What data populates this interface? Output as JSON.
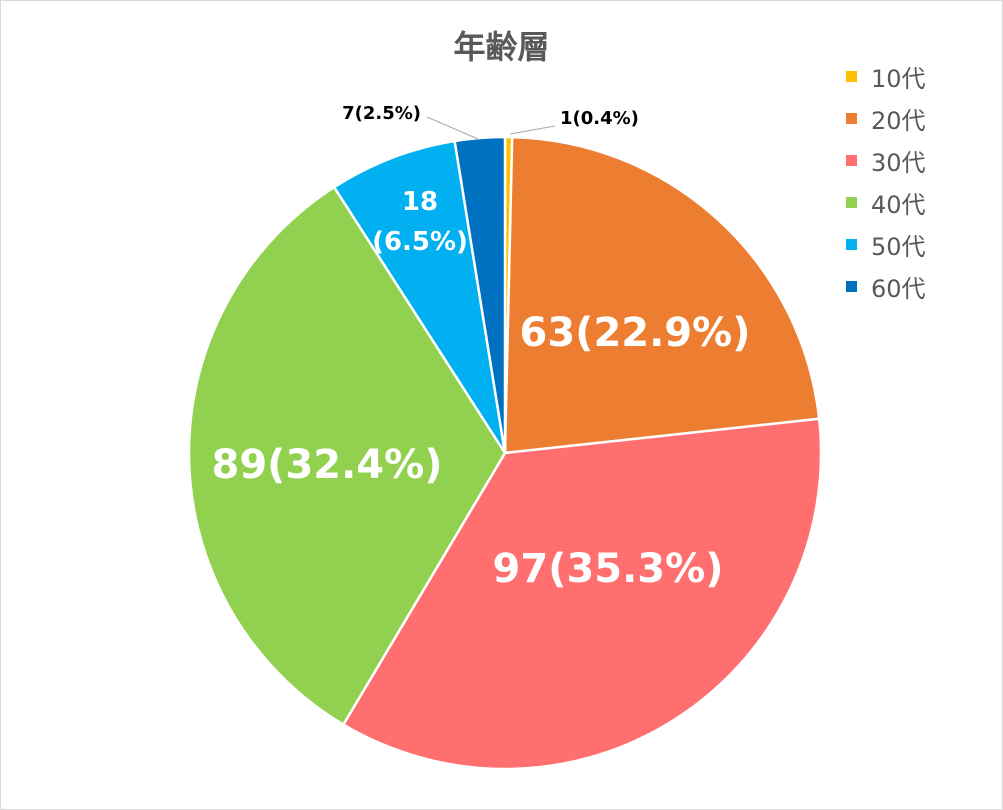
{
  "chart_data": {
    "type": "pie",
    "title": "年齢層",
    "legend_position": "right",
    "slices": [
      {
        "category": "10代",
        "value": 1,
        "percent": 0.4,
        "label": "1(0.4%)",
        "color": "#FFC000"
      },
      {
        "category": "20代",
        "value": 63,
        "percent": 22.9,
        "label": "63(22.9%)",
        "color": "#ED7D31"
      },
      {
        "category": "30代",
        "value": 97,
        "percent": 35.3,
        "label": "97(35.3%)",
        "color": "#FF6F6F"
      },
      {
        "category": "40代",
        "value": 89,
        "percent": 32.4,
        "label": "89(32.4%)",
        "color": "#92D050"
      },
      {
        "category": "50代",
        "value": 18,
        "percent": 6.5,
        "label": "18\n(6.5%)",
        "color": "#00B0F0"
      },
      {
        "category": "60代",
        "value": 7,
        "percent": 2.5,
        "label": "7(2.5%)",
        "color": "#0070C0"
      }
    ]
  }
}
